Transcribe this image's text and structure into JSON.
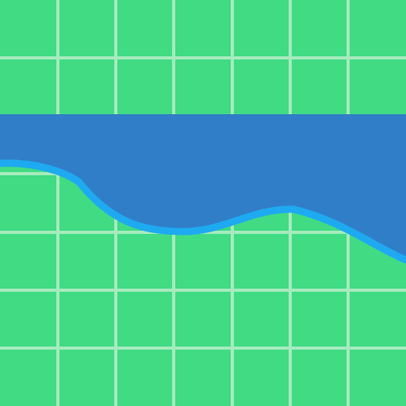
{
  "colors": {
    "ground": "#41db84",
    "grid_line": "#a6ebbd",
    "water_fill": "#317ec8",
    "water_edge": "#1eaaf1"
  },
  "tile_map": {
    "columns": 7,
    "rows": 7,
    "terrain": "grass",
    "overlay": "water"
  }
}
